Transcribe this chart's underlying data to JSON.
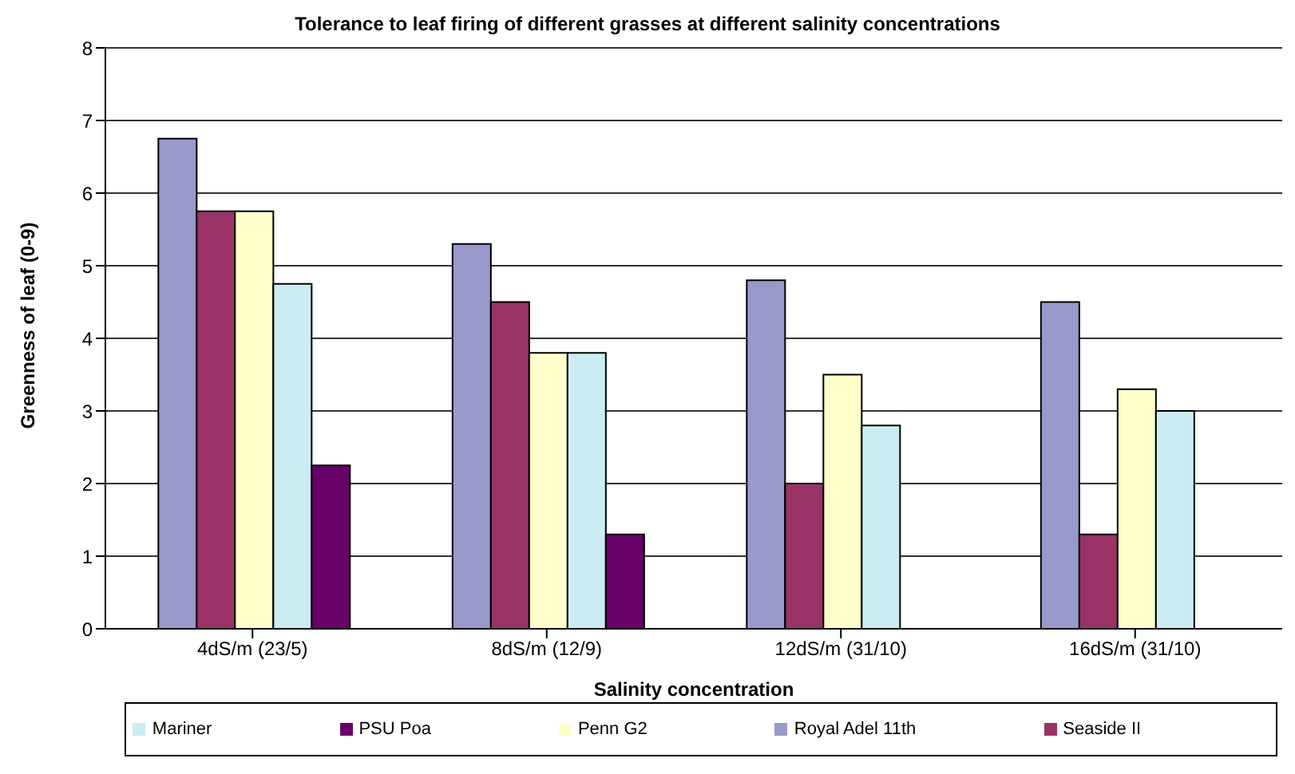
{
  "chart_data": {
    "type": "bar",
    "title": "Tolerance to leaf firing of different grasses at different salinity concentrations",
    "xlabel": "Salinity concentration",
    "ylabel": "Greenness of leaf (0-9)",
    "categories": [
      "4dS/m (23/5)",
      "8dS/m (12/9)",
      "12dS/m (31/10)",
      "16dS/m (31/10)"
    ],
    "series": [
      {
        "name": "Royal Adel 11th",
        "color": "#9999cc",
        "values": [
          6.75,
          5.3,
          4.8,
          4.5
        ]
      },
      {
        "name": "Seaside II",
        "color": "#993366",
        "values": [
          5.75,
          4.5,
          2.0,
          1.3
        ]
      },
      {
        "name": "Penn G2",
        "color": "#ffffcc",
        "values": [
          5.75,
          3.8,
          3.5,
          3.3
        ]
      },
      {
        "name": "Mariner",
        "color": "#ccecf4",
        "values": [
          4.75,
          3.8,
          2.8,
          3.0
        ]
      },
      {
        "name": "PSU Poa",
        "color": "#660066",
        "values": [
          2.25,
          1.3,
          null,
          null
        ]
      }
    ],
    "ylim": [
      0,
      8
    ],
    "yticks": [
      0,
      1,
      2,
      3,
      4,
      5,
      6,
      7,
      8
    ],
    "grid": "y",
    "legend": "bottom"
  }
}
